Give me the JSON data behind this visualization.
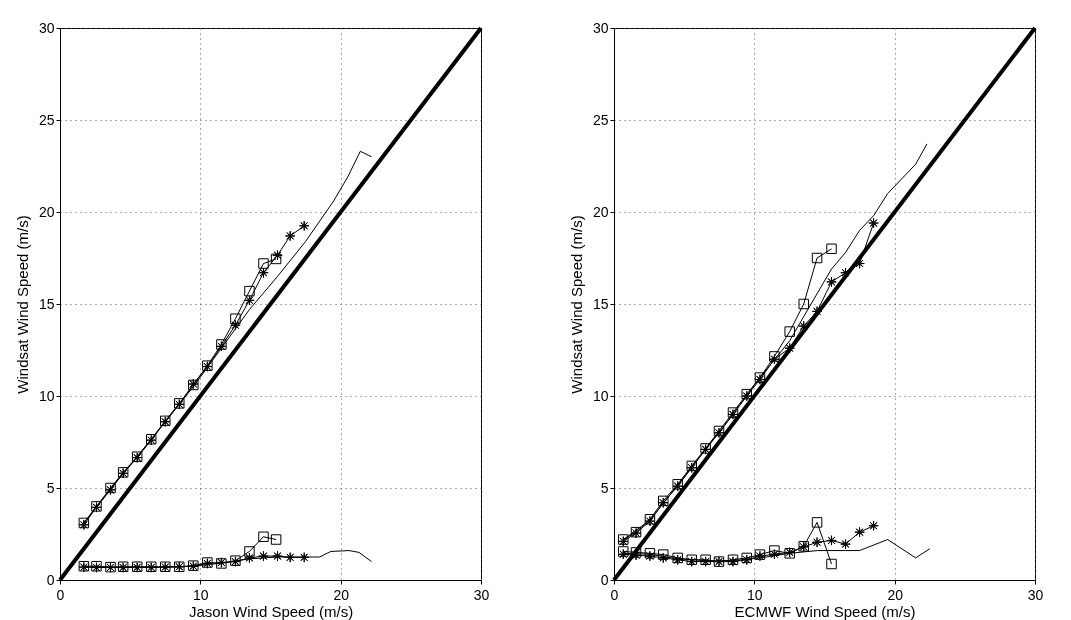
{
  "chart_data": [
    {
      "type": "line",
      "xlabel": "Jason Wind Speed (m/s)",
      "ylabel": "Windsat Wind Speed (m/s)",
      "xlim": [
        0,
        30
      ],
      "ylim": [
        0,
        30
      ],
      "xticks": [
        0,
        10,
        20,
        30
      ],
      "yticks": [
        0,
        5,
        10,
        15,
        20,
        25,
        30
      ],
      "grid": true,
      "series": [
        {
          "color": "#000000",
          "marker": "none",
          "x": [
            0,
            30
          ],
          "values": [
            0,
            30
          ]
        },
        {
          "color": "#000000",
          "marker": "square",
          "x": [
            1.7,
            2.6,
            3.6,
            4.5,
            5.5,
            6.5,
            7.5,
            8.5,
            9.5,
            10.5,
            11.5,
            12.5,
            13.5,
            14.5,
            15.4
          ],
          "values": [
            3.1,
            4.0,
            5.0,
            5.85,
            6.7,
            7.65,
            8.65,
            9.6,
            10.6,
            11.65,
            12.8,
            14.2,
            15.7,
            17.2,
            17.45
          ]
        },
        {
          "color": "#000000",
          "marker": "star",
          "x": [
            1.7,
            2.6,
            3.6,
            4.5,
            5.5,
            6.5,
            7.5,
            8.5,
            9.5,
            10.5,
            11.5,
            12.5,
            13.5,
            14.5,
            15.5,
            16.4,
            17.4
          ],
          "values": [
            3.0,
            3.95,
            4.9,
            5.8,
            6.65,
            7.6,
            8.6,
            9.55,
            10.65,
            11.6,
            12.7,
            13.85,
            15.2,
            16.7,
            17.65,
            18.7,
            19.25
          ]
        },
        {
          "color": "#000000",
          "marker": "none",
          "x": [
            1.7,
            3.6,
            5.5,
            7.5,
            9.5,
            11.5,
            13.5,
            15.5,
            17.5,
            19.5,
            20.5,
            21.4,
            22.2
          ],
          "values": [
            3.1,
            4.95,
            6.7,
            8.6,
            10.5,
            12.6,
            14.7,
            16.5,
            18.4,
            20.6,
            21.9,
            23.3,
            23.0
          ]
        },
        {
          "color": "#000000",
          "marker": "square",
          "x": [
            1.7,
            2.6,
            3.6,
            4.5,
            5.5,
            6.5,
            7.5,
            8.5,
            9.5,
            10.5,
            11.5,
            12.5,
            13.5,
            14.5,
            15.4
          ],
          "values": [
            0.75,
            0.75,
            0.7,
            0.72,
            0.72,
            0.72,
            0.72,
            0.72,
            0.78,
            0.95,
            0.9,
            1.05,
            1.55,
            2.35,
            2.2
          ]
        },
        {
          "color": "#000000",
          "marker": "star",
          "x": [
            1.7,
            2.6,
            3.6,
            4.5,
            5.5,
            6.5,
            7.5,
            8.5,
            9.5,
            10.5,
            11.5,
            12.5,
            13.5,
            14.5,
            15.5,
            16.4,
            17.4
          ],
          "values": [
            0.7,
            0.68,
            0.68,
            0.68,
            0.68,
            0.68,
            0.7,
            0.72,
            0.75,
            0.9,
            0.95,
            1.0,
            1.2,
            1.3,
            1.3,
            1.23,
            1.23
          ]
        },
        {
          "color": "#000000",
          "marker": "none",
          "x": [
            1.7,
            3.6,
            5.5,
            7.5,
            9.5,
            11.5,
            13.5,
            15.5,
            17.5,
            18.5,
            19.3,
            20.6,
            21.3,
            22.2
          ],
          "values": [
            0.72,
            0.7,
            0.7,
            0.7,
            0.75,
            0.92,
            1.15,
            1.25,
            1.25,
            1.25,
            1.55,
            1.6,
            1.5,
            1.0
          ]
        }
      ]
    },
    {
      "type": "line",
      "xlabel": "ECMWF Wind Speed (m/s)",
      "ylabel": "Windsat Wind Speed (m/s)",
      "xlim": [
        0,
        30
      ],
      "ylim": [
        0,
        30
      ],
      "xticks": [
        0,
        10,
        20,
        30
      ],
      "yticks": [
        0,
        5,
        10,
        15,
        20,
        25,
        30
      ],
      "grid": true,
      "series": [
        {
          "color": "#000000",
          "marker": "none",
          "x": [
            0,
            30
          ],
          "values": [
            0,
            30
          ]
        },
        {
          "color": "#000000",
          "marker": "square",
          "x": [
            0.66,
            1.57,
            2.56,
            3.51,
            4.54,
            5.54,
            6.53,
            7.48,
            8.48,
            9.46,
            10.4,
            11.43,
            12.52,
            13.52,
            14.47,
            15.5
          ],
          "values": [
            2.2,
            2.6,
            3.3,
            4.3,
            5.2,
            6.2,
            7.15,
            8.1,
            9.1,
            10.1,
            11.0,
            12.15,
            13.5,
            15.0,
            17.5,
            18.0
          ]
        },
        {
          "color": "#000000",
          "marker": "star",
          "x": [
            0.66,
            1.57,
            2.56,
            3.51,
            4.54,
            5.54,
            6.53,
            7.48,
            8.48,
            9.46,
            10.4,
            11.43,
            12.52,
            13.52,
            14.47,
            15.5,
            16.5,
            17.5,
            18.5
          ],
          "values": [
            2.1,
            2.55,
            3.2,
            4.2,
            5.1,
            6.1,
            7.1,
            8.0,
            9.0,
            10.0,
            10.9,
            12.0,
            12.6,
            13.8,
            14.6,
            16.2,
            16.7,
            17.2,
            19.4
          ]
        },
        {
          "color": "#000000",
          "marker": "none",
          "x": [
            0.66,
            2.56,
            4.54,
            6.53,
            8.48,
            10.4,
            12.52,
            14.5,
            15.5,
            16.5,
            17.5,
            18.5,
            19.5,
            20.5,
            21.5,
            22.3
          ],
          "values": [
            2.2,
            3.25,
            5.15,
            7.1,
            9.0,
            11.0,
            13.0,
            15.6,
            16.9,
            17.8,
            19.0,
            19.8,
            21.0,
            21.8,
            22.6,
            23.7
          ]
        },
        {
          "color": "#000000",
          "marker": "square",
          "x": [
            0.66,
            1.57,
            2.56,
            3.51,
            4.54,
            5.54,
            6.53,
            7.48,
            8.48,
            9.46,
            10.4,
            11.43,
            12.52,
            13.52,
            14.47,
            15.5
          ],
          "values": [
            1.55,
            1.5,
            1.45,
            1.38,
            1.2,
            1.1,
            1.1,
            1.0,
            1.1,
            1.2,
            1.38,
            1.6,
            1.45,
            1.83,
            3.13,
            0.87
          ]
        },
        {
          "color": "#000000",
          "marker": "star",
          "x": [
            0.66,
            1.57,
            2.56,
            3.51,
            4.54,
            5.54,
            6.53,
            7.48,
            8.48,
            9.46,
            10.4,
            11.43,
            12.52,
            13.52,
            14.47,
            15.5,
            16.5,
            17.5,
            18.5
          ],
          "values": [
            1.4,
            1.35,
            1.3,
            1.2,
            1.1,
            1.0,
            1.0,
            1.0,
            1.0,
            1.1,
            1.3,
            1.4,
            1.5,
            1.8,
            2.05,
            2.15,
            1.95,
            2.6,
            2.95
          ]
        },
        {
          "color": "#000000",
          "marker": "none",
          "x": [
            0.66,
            2.56,
            4.54,
            6.53,
            8.48,
            10.4,
            12.52,
            14.5,
            16.5,
            17.5,
            19.5,
            21.5,
            22.5
          ],
          "values": [
            1.45,
            1.4,
            1.15,
            1.05,
            1.05,
            1.2,
            1.45,
            1.6,
            1.6,
            1.6,
            2.2,
            1.2,
            1.7
          ]
        }
      ]
    }
  ]
}
